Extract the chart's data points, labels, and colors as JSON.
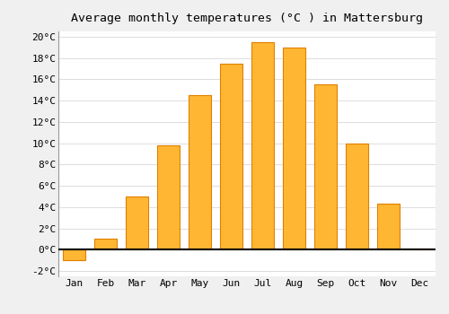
{
  "title": "Average monthly temperatures (°C ) in Mattersburg",
  "months": [
    "Jan",
    "Feb",
    "Mar",
    "Apr",
    "May",
    "Jun",
    "Jul",
    "Aug",
    "Sep",
    "Oct",
    "Nov",
    "Dec"
  ],
  "values": [
    -1.0,
    1.0,
    5.0,
    9.8,
    14.5,
    17.5,
    19.5,
    19.0,
    15.5,
    10.0,
    4.3,
    0.1
  ],
  "bar_color_positive": "#FFB733",
  "bar_color_negative": "#FFB733",
  "bar_edge_color": "#E08000",
  "ylim": [
    -2.5,
    20.5
  ],
  "yticks": [
    -2,
    0,
    2,
    4,
    6,
    8,
    10,
    12,
    14,
    16,
    18,
    20
  ],
  "ytick_labels": [
    "-2°C",
    "0°C",
    "2°C",
    "4°C",
    "6°C",
    "8°C",
    "10°C",
    "12°C",
    "14°C",
    "16°C",
    "18°C",
    "20°C"
  ],
  "background_color": "#F0F0F0",
  "plot_bg_color": "#FFFFFF",
  "grid_color": "#DDDDDD",
  "title_fontsize": 9.5,
  "tick_fontsize": 8,
  "font_family": "monospace",
  "bar_width": 0.7
}
